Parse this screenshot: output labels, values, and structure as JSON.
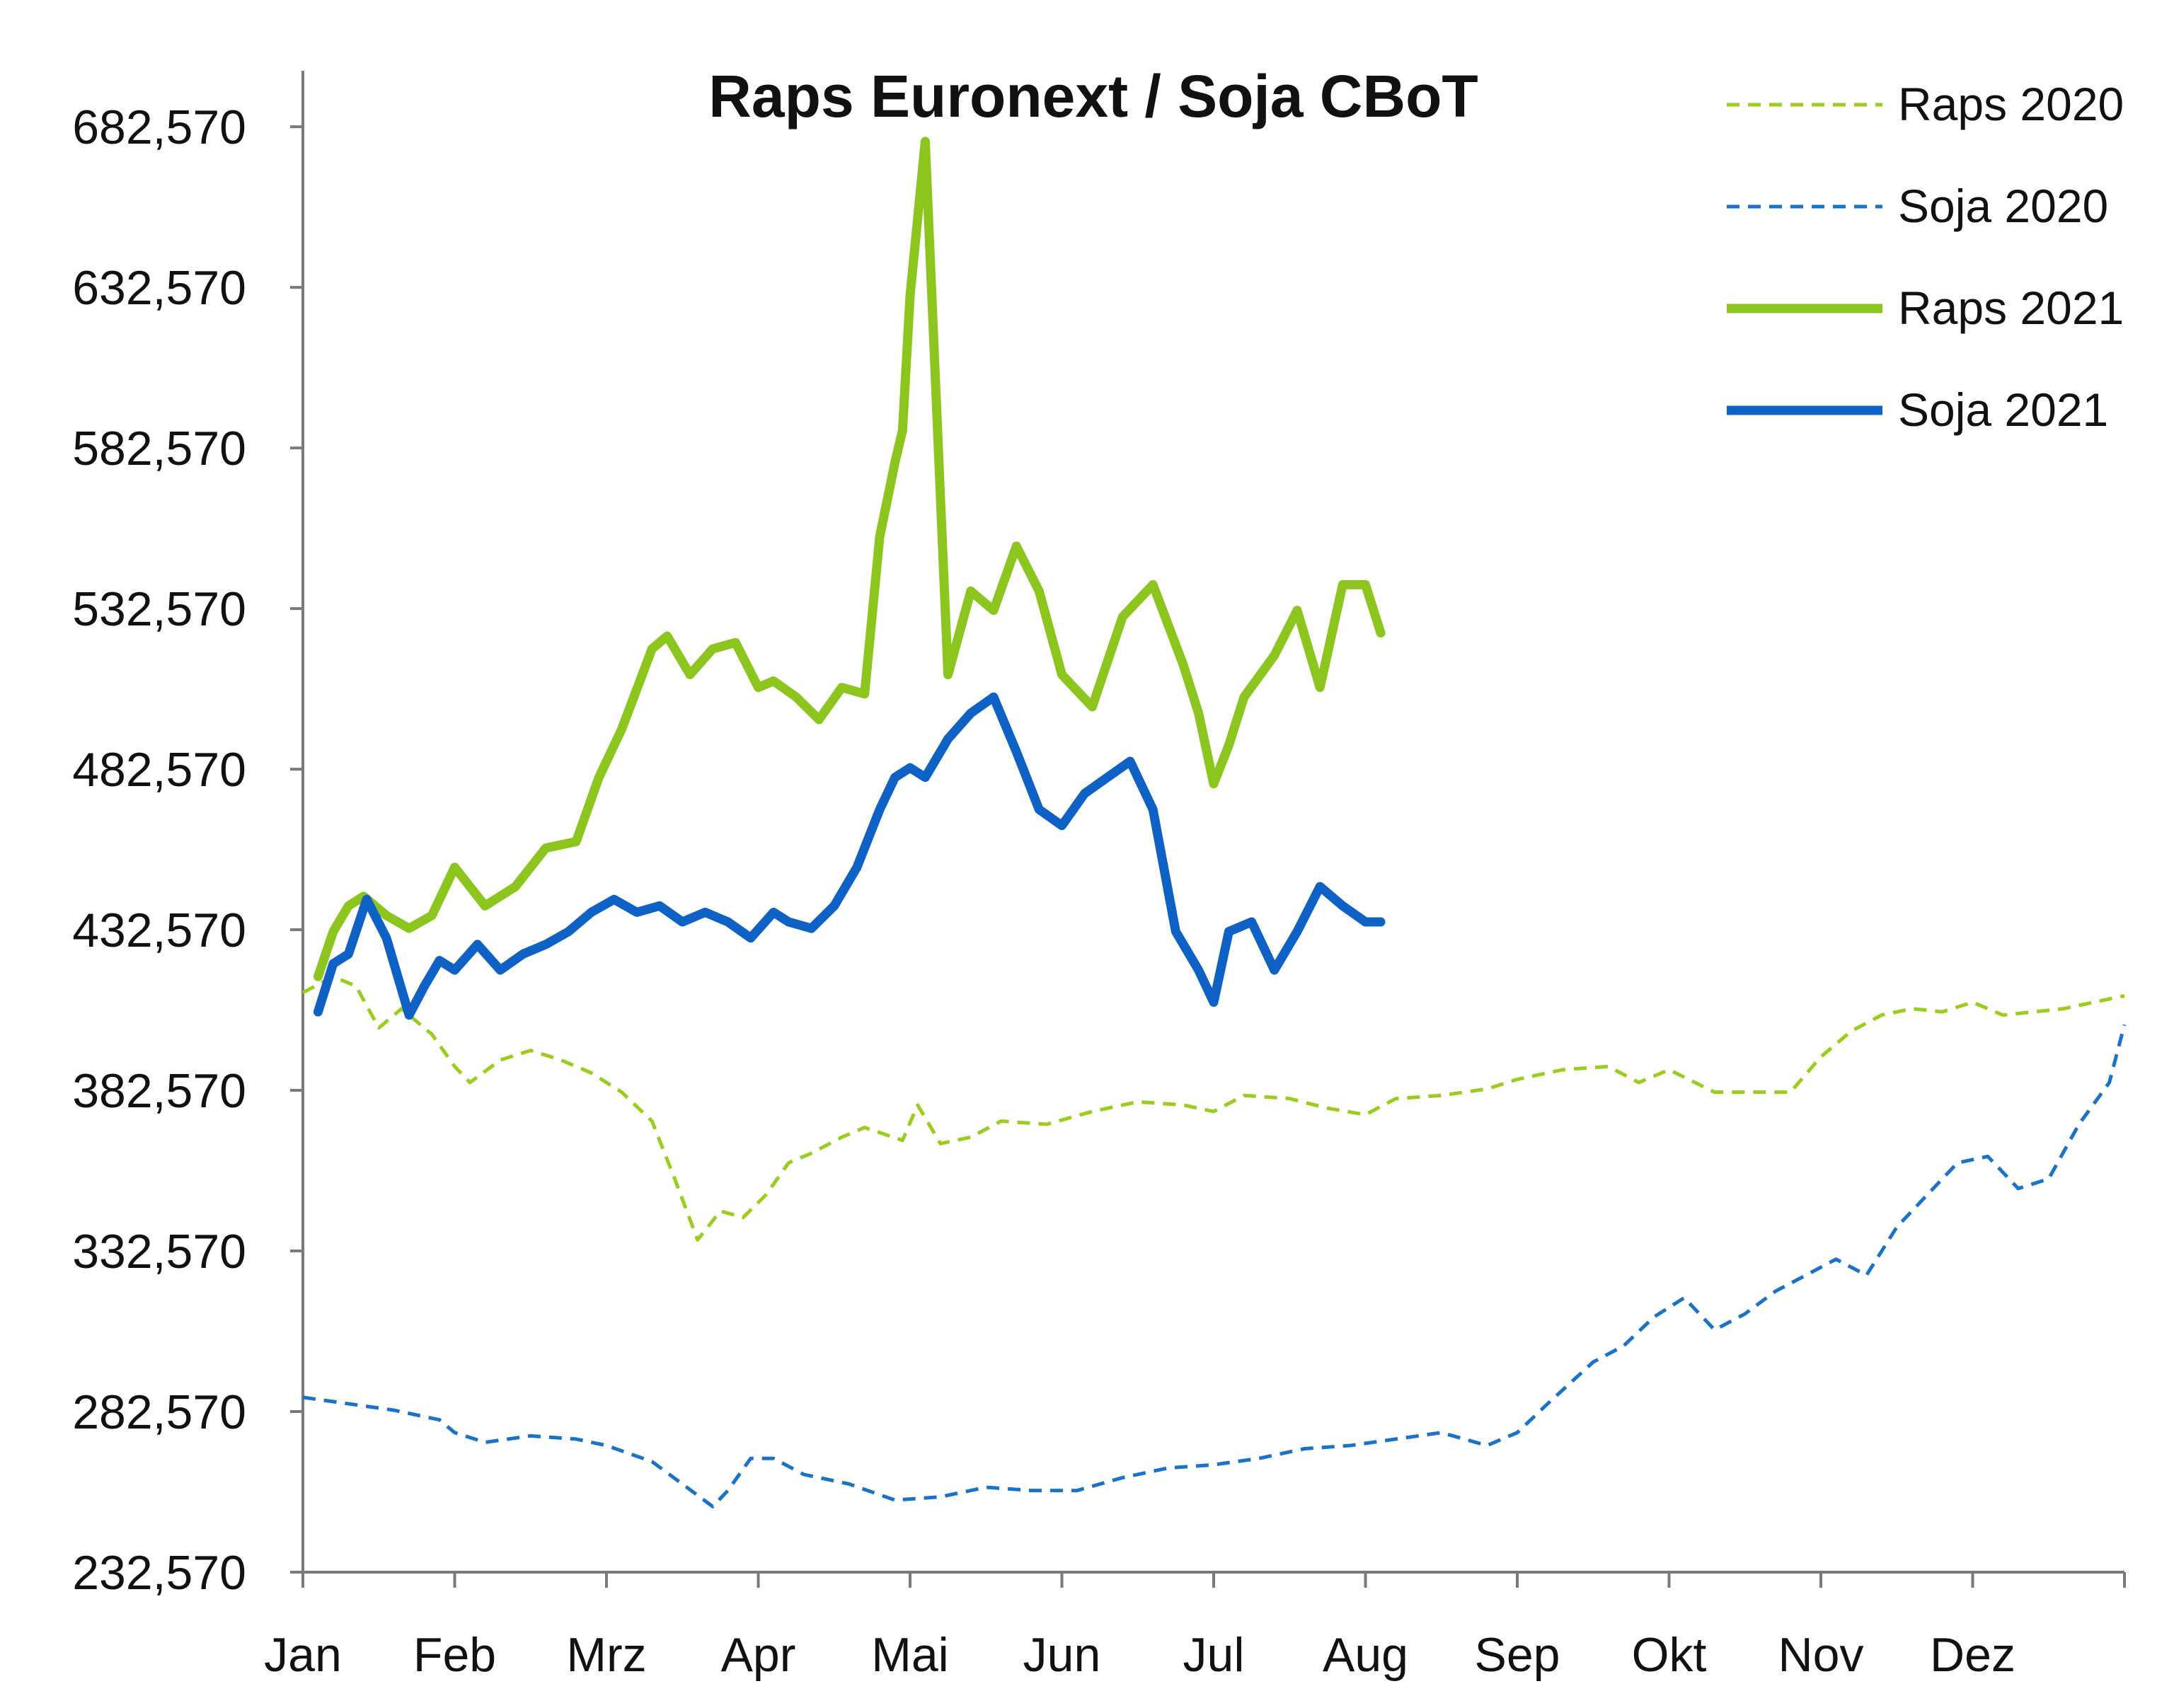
{
  "chart_data": {
    "type": "line",
    "title": "Raps Euronext / Soja CBoT",
    "xlabel": "",
    "ylabel": "",
    "ylim": [
      232570,
      700000
    ],
    "yticks": [
      232570,
      282570,
      332570,
      382570,
      432570,
      482570,
      532570,
      582570,
      632570,
      682570
    ],
    "ytick_labels": [
      "232,570",
      "282,570",
      "332,570",
      "382,570",
      "432,570",
      "482,570",
      "532,570",
      "582,570",
      "632,570",
      "682,570"
    ],
    "categories": [
      "Jan",
      "Feb",
      "Mrz",
      "Apr",
      "Mai",
      "Jun",
      "Jul",
      "Aug",
      "Sep",
      "Okt",
      "Nov",
      "Dez"
    ],
    "x_unit": "month index (0 = Jan 1, 12 = Dec 31)",
    "xlim": [
      0,
      12
    ],
    "legend_position": "top-right",
    "series": [
      {
        "name": "Raps 2020",
        "color": "#9acd1f",
        "style": "dashed",
        "x": [
          0,
          0.2,
          0.35,
          0.5,
          0.65,
          0.85,
          1.0,
          1.1,
          1.3,
          1.5,
          1.7,
          1.9,
          2.1,
          2.3,
          2.45,
          2.6,
          2.75,
          2.9,
          3.05,
          3.2,
          3.35,
          3.55,
          3.7,
          3.95,
          4.05,
          4.2,
          4.4,
          4.6,
          4.9,
          5.2,
          5.5,
          5.8,
          6.0,
          6.2,
          6.5,
          6.75,
          7.0,
          7.2,
          7.5,
          7.8,
          8.0,
          8.3,
          8.6,
          8.8,
          9.0,
          9.3,
          9.6,
          9.8,
          10.0,
          10.2,
          10.4,
          10.6,
          10.8,
          11.0,
          11.2,
          11.4,
          11.6,
          11.8,
          12.0
        ],
        "values": [
          413,
          418,
          415,
          402,
          408,
          400,
          390,
          385,
          392,
          395,
          392,
          388,
          382,
          373,
          355,
          336,
          345,
          343,
          350,
          360,
          363,
          368,
          371,
          367,
          378,
          366,
          368,
          373,
          372,
          376,
          379,
          378,
          376,
          381,
          380,
          377,
          375,
          380,
          381,
          383,
          386,
          389,
          390,
          385,
          389,
          382,
          382,
          382,
          393,
          401,
          406,
          408,
          407,
          410,
          406,
          407,
          408,
          410,
          412
        ]
      },
      {
        "name": "Soja 2020",
        "color": "#1a73c8",
        "style": "dashed",
        "x": [
          0,
          0.3,
          0.6,
          0.9,
          1.0,
          1.2,
          1.5,
          1.8,
          2.0,
          2.3,
          2.5,
          2.7,
          2.8,
          2.95,
          3.1,
          3.3,
          3.6,
          3.9,
          4.2,
          4.5,
          4.8,
          5.1,
          5.4,
          5.7,
          6.0,
          6.3,
          6.6,
          6.9,
          7.2,
          7.5,
          7.8,
          8.0,
          8.2,
          8.5,
          8.7,
          8.9,
          9.1,
          9.3,
          9.5,
          9.7,
          9.9,
          10.1,
          10.3,
          10.5,
          10.7,
          10.9,
          11.1,
          11.3,
          11.5,
          11.7,
          11.9,
          12.0
        ],
        "values": [
          287,
          285,
          283,
          280,
          276,
          273,
          275,
          274,
          272,
          267,
          260,
          253,
          258,
          268,
          268,
          263,
          260,
          255,
          256,
          259,
          258,
          258,
          262,
          265,
          266,
          268,
          271,
          272,
          274,
          276,
          272,
          276,
          285,
          298,
          303,
          312,
          318,
          308,
          313,
          320,
          325,
          330,
          325,
          340,
          350,
          360,
          362,
          352,
          355,
          372,
          385,
          403
        ]
      },
      {
        "name": "Raps 2021",
        "color": "#8cc51e",
        "style": "solid",
        "x": [
          0.1,
          0.2,
          0.3,
          0.4,
          0.55,
          0.7,
          0.85,
          1.0,
          1.2,
          1.4,
          1.6,
          1.8,
          1.95,
          2.1,
          2.3,
          2.4,
          2.55,
          2.7,
          2.85,
          3.0,
          3.1,
          3.25,
          3.4,
          3.55,
          3.7,
          3.8,
          3.9,
          3.95,
          4.0,
          4.1,
          4.25,
          4.4,
          4.55,
          4.7,
          4.85,
          5.0,
          5.2,
          5.4,
          5.6,
          5.8,
          5.9,
          6.0,
          6.1,
          6.2,
          6.4,
          6.55,
          6.7,
          6.85,
          7.0,
          7.1
        ],
        "values": [
          418,
          432,
          440,
          443,
          437,
          433,
          437,
          452,
          440,
          446,
          458,
          460,
          480,
          495,
          520,
          524,
          512,
          520,
          522,
          508,
          510,
          505,
          498,
          508,
          506,
          555,
          578,
          588,
          630,
          678,
          512,
          538,
          532,
          552,
          538,
          512,
          502,
          530,
          540,
          515,
          500,
          478,
          490,
          505,
          518,
          532,
          508,
          540,
          540,
          525
        ]
      },
      {
        "name": "Soja 2021",
        "color": "#0f62c5",
        "style": "solid",
        "x": [
          0.1,
          0.2,
          0.3,
          0.42,
          0.55,
          0.7,
          0.8,
          0.9,
          1.0,
          1.15,
          1.3,
          1.45,
          1.6,
          1.75,
          1.9,
          2.05,
          2.2,
          2.35,
          2.5,
          2.65,
          2.8,
          2.95,
          3.1,
          3.2,
          3.35,
          3.5,
          3.65,
          3.8,
          3.9,
          4.0,
          4.1,
          4.25,
          4.4,
          4.55,
          4.7,
          4.85,
          5.0,
          5.15,
          5.3,
          5.45,
          5.6,
          5.75,
          5.9,
          6.0,
          6.1,
          6.25,
          6.4,
          6.55,
          6.7,
          6.85,
          7.0,
          7.1
        ],
        "values": [
          407,
          422,
          425,
          442,
          430,
          406,
          415,
          423,
          420,
          428,
          420,
          425,
          428,
          432,
          438,
          442,
          438,
          440,
          435,
          438,
          435,
          430,
          438,
          435,
          433,
          440,
          452,
          470,
          480,
          483,
          480,
          492,
          500,
          505,
          488,
          470,
          465,
          475,
          480,
          485,
          470,
          432,
          420,
          410,
          432,
          435,
          420,
          432,
          446,
          440,
          435,
          435
        ]
      }
    ]
  }
}
